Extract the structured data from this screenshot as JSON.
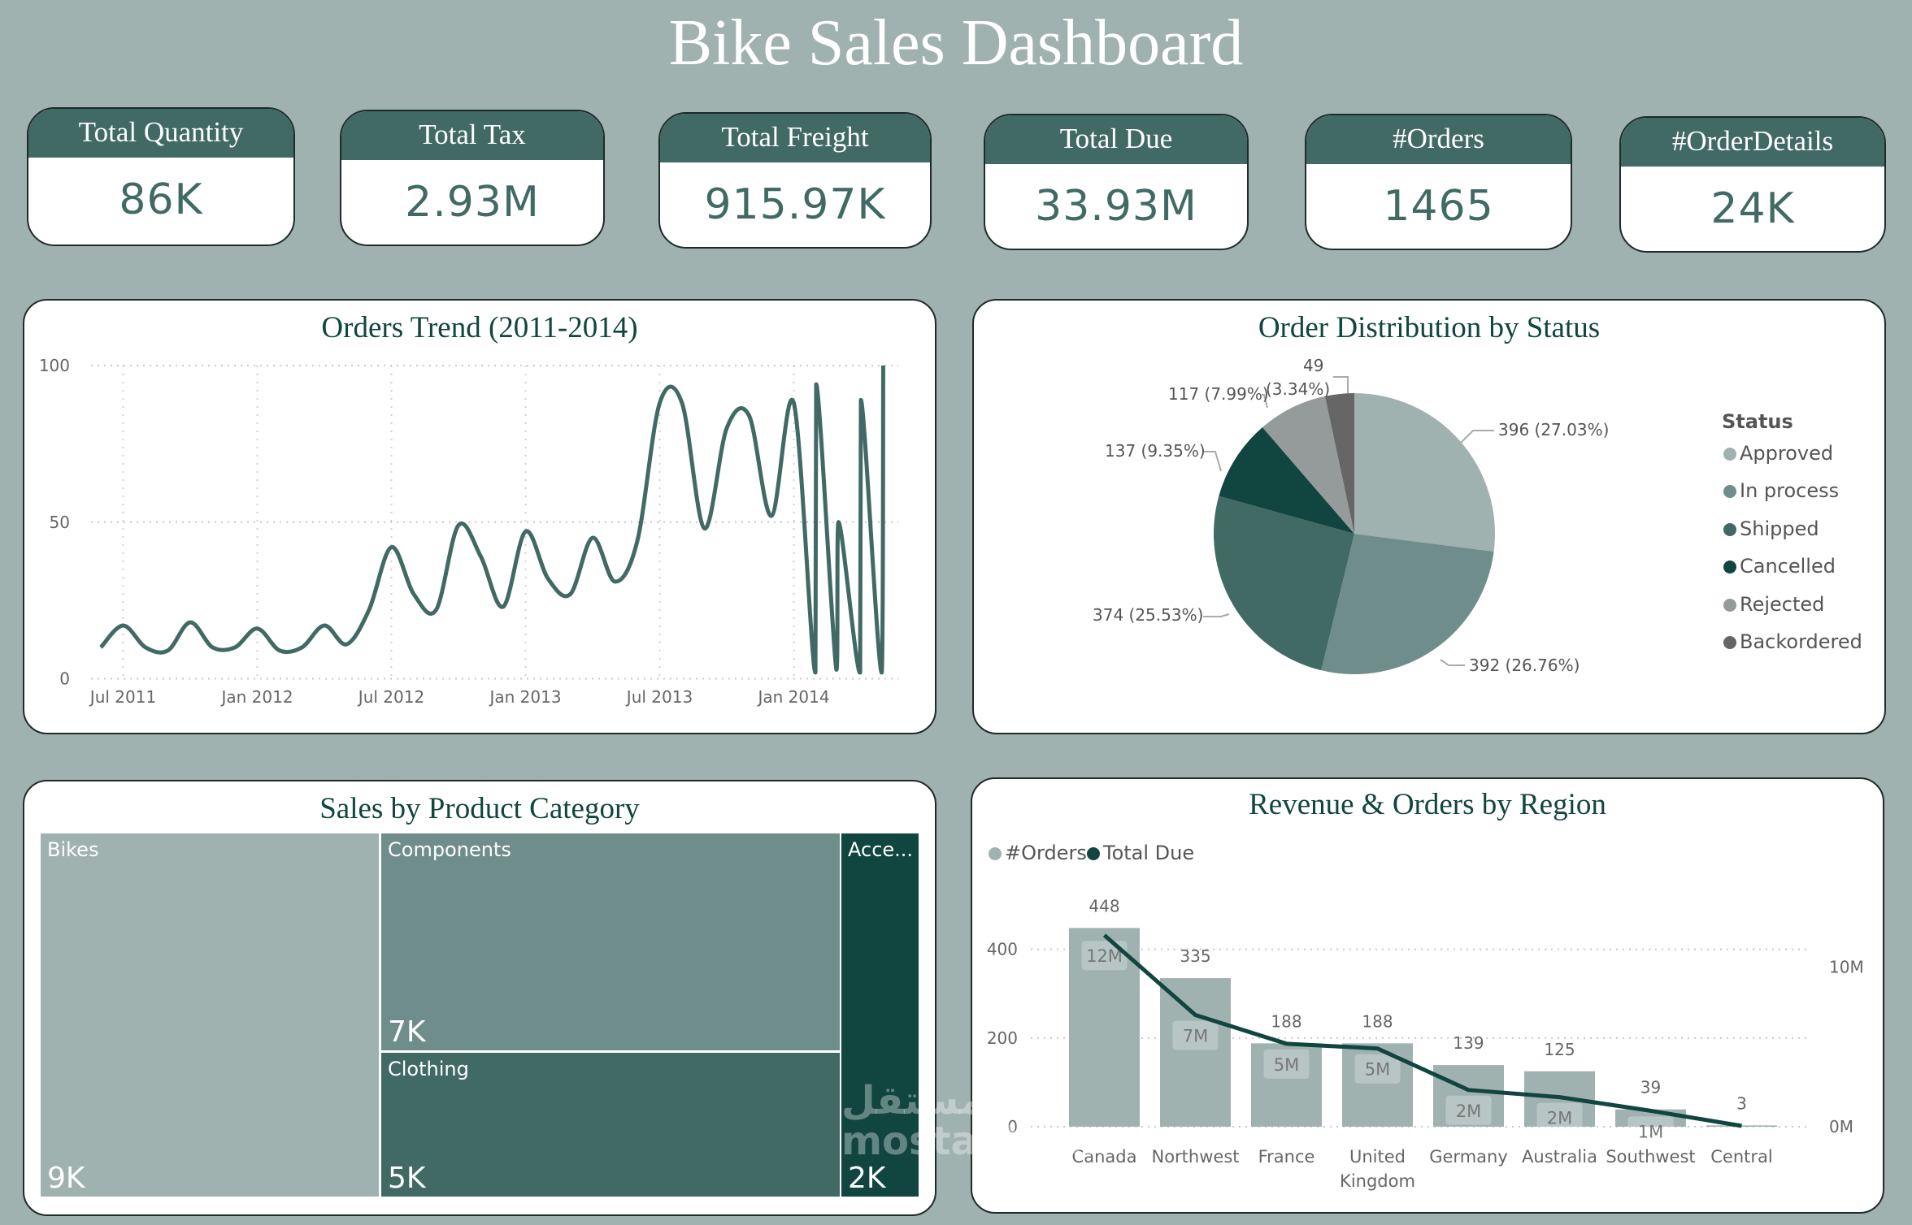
{
  "title": "Bike Sales Dashboard",
  "kpis": [
    {
      "label": "Total Quantity",
      "value": "86K"
    },
    {
      "label": "Total Tax",
      "value": "2.93M"
    },
    {
      "label": "Total Freight",
      "value": "915.97K"
    },
    {
      "label": "Total Due",
      "value": "33.93M"
    },
    {
      "label": "#Orders",
      "value": "1465"
    },
    {
      "label": "#OrderDetails",
      "value": "24K"
    }
  ],
  "colors": {
    "background": "#9fb2b0",
    "header": "#416a65",
    "dark": "#11453f",
    "mid": "#6f8e8b",
    "light": "#9fb2b0"
  },
  "chart_data": [
    {
      "type": "line",
      "title": "Orders Trend (2011-2014)",
      "ylim": [
        0,
        100
      ],
      "yticks": [
        "0",
        "50",
        "100"
      ],
      "xticks": [
        "Jul 2011",
        "Jan 2012",
        "Jul 2012",
        "Jan 2013",
        "Jul 2013",
        "Jan 2014"
      ],
      "grid": true,
      "points": [
        [
          "2011-06-01",
          10
        ],
        [
          "2011-07-01",
          17
        ],
        [
          "2011-08-01",
          10
        ],
        [
          "2011-09-01",
          9
        ],
        [
          "2011-10-01",
          18
        ],
        [
          "2011-11-01",
          10
        ],
        [
          "2011-12-01",
          10
        ],
        [
          "2012-01-01",
          16
        ],
        [
          "2012-02-01",
          9
        ],
        [
          "2012-03-01",
          10
        ],
        [
          "2012-04-01",
          17
        ],
        [
          "2012-05-01",
          11
        ],
        [
          "2012-06-01",
          22
        ],
        [
          "2012-07-01",
          42
        ],
        [
          "2012-08-01",
          27
        ],
        [
          "2012-09-01",
          22
        ],
        [
          "2012-10-01",
          49
        ],
        [
          "2012-11-01",
          39
        ],
        [
          "2012-12-01",
          23
        ],
        [
          "2013-01-01",
          47
        ],
        [
          "2013-02-01",
          32
        ],
        [
          "2013-03-01",
          27
        ],
        [
          "2013-04-01",
          45
        ],
        [
          "2013-05-01",
          31
        ],
        [
          "2013-06-01",
          44
        ],
        [
          "2013-07-01",
          88
        ],
        [
          "2013-08-01",
          88
        ],
        [
          "2013-09-01",
          48
        ],
        [
          "2013-10-01",
          80
        ],
        [
          "2013-11-01",
          84
        ],
        [
          "2013-12-01",
          52
        ],
        [
          "2014-01-01",
          88
        ],
        [
          "2014-01-30",
          2
        ],
        [
          "2014-02-01",
          94
        ],
        [
          "2014-02-28",
          3
        ],
        [
          "2014-03-01",
          50
        ],
        [
          "2014-03-30",
          2
        ],
        [
          "2014-04-01",
          89
        ],
        [
          "2014-04-29",
          2
        ],
        [
          "2014-05-01",
          100
        ]
      ]
    },
    {
      "type": "pie",
      "title": "Order Distribution by Status",
      "legend_title": "Status",
      "legend_position": "right",
      "slices": [
        {
          "name": "Approved",
          "value": 396,
          "label": "396 (27.03%)",
          "color": "#9fb2b0"
        },
        {
          "name": "In process",
          "value": 392,
          "label": "392 (26.76%)",
          "color": "#6f8e8b"
        },
        {
          "name": "Shipped",
          "value": 374,
          "label": "374 (25.53%)",
          "color": "#416a65"
        },
        {
          "name": "Cancelled",
          "value": 137,
          "label": "137 (9.35%)",
          "color": "#11453f"
        },
        {
          "name": "Rejected",
          "value": 117,
          "label": "117 (7.99%)",
          "color": "#959a9a"
        },
        {
          "name": "Backordered",
          "value": 49,
          "label_value": "49",
          "label_pct": "(3.34%)",
          "color": "#666666"
        }
      ]
    },
    {
      "type": "treemap",
      "title": "Sales by Product Category",
      "items": [
        {
          "name": "Bikes",
          "value": "9K",
          "color": "#9fb2b0"
        },
        {
          "name": "Components",
          "value": "7K",
          "color": "#6f8e8b"
        },
        {
          "name": "Clothing",
          "value": "5K",
          "color": "#416a65"
        },
        {
          "name": "Acce...",
          "value": "2K",
          "color": "#11453f"
        }
      ]
    },
    {
      "type": "bar",
      "title": "Revenue & Orders by Region",
      "legend_position": "top-left",
      "categories": [
        "Canada",
        "Northwest",
        "France",
        "United Kingdom",
        "Germany",
        "Australia",
        "Southwest",
        "Central"
      ],
      "series": [
        {
          "name": "#Orders",
          "type": "bar",
          "color": "#9fb2b0",
          "values": [
            448,
            335,
            188,
            188,
            139,
            125,
            39,
            3
          ],
          "labels": [
            "448",
            "335",
            "188",
            "188",
            "139",
            "125",
            "39",
            "3"
          ]
        },
        {
          "name": "Total Due",
          "type": "line",
          "color": "#11453f",
          "values_millions": [
            12.0,
            7.0,
            5.2,
            4.9,
            2.3,
            1.85,
            1.0,
            0.05
          ],
          "labels": [
            "12M",
            "7M",
            "5M",
            "5M",
            "2M",
            "2M",
            "1M",
            ""
          ]
        }
      ],
      "y_left": {
        "ylim": [
          0,
          480
        ],
        "ticks": [
          "0",
          "200",
          "400"
        ]
      },
      "y_right": {
        "ticks": [
          "0M",
          "10M"
        ]
      },
      "grid": true
    }
  ],
  "watermark": "مستقل mostaql.com"
}
